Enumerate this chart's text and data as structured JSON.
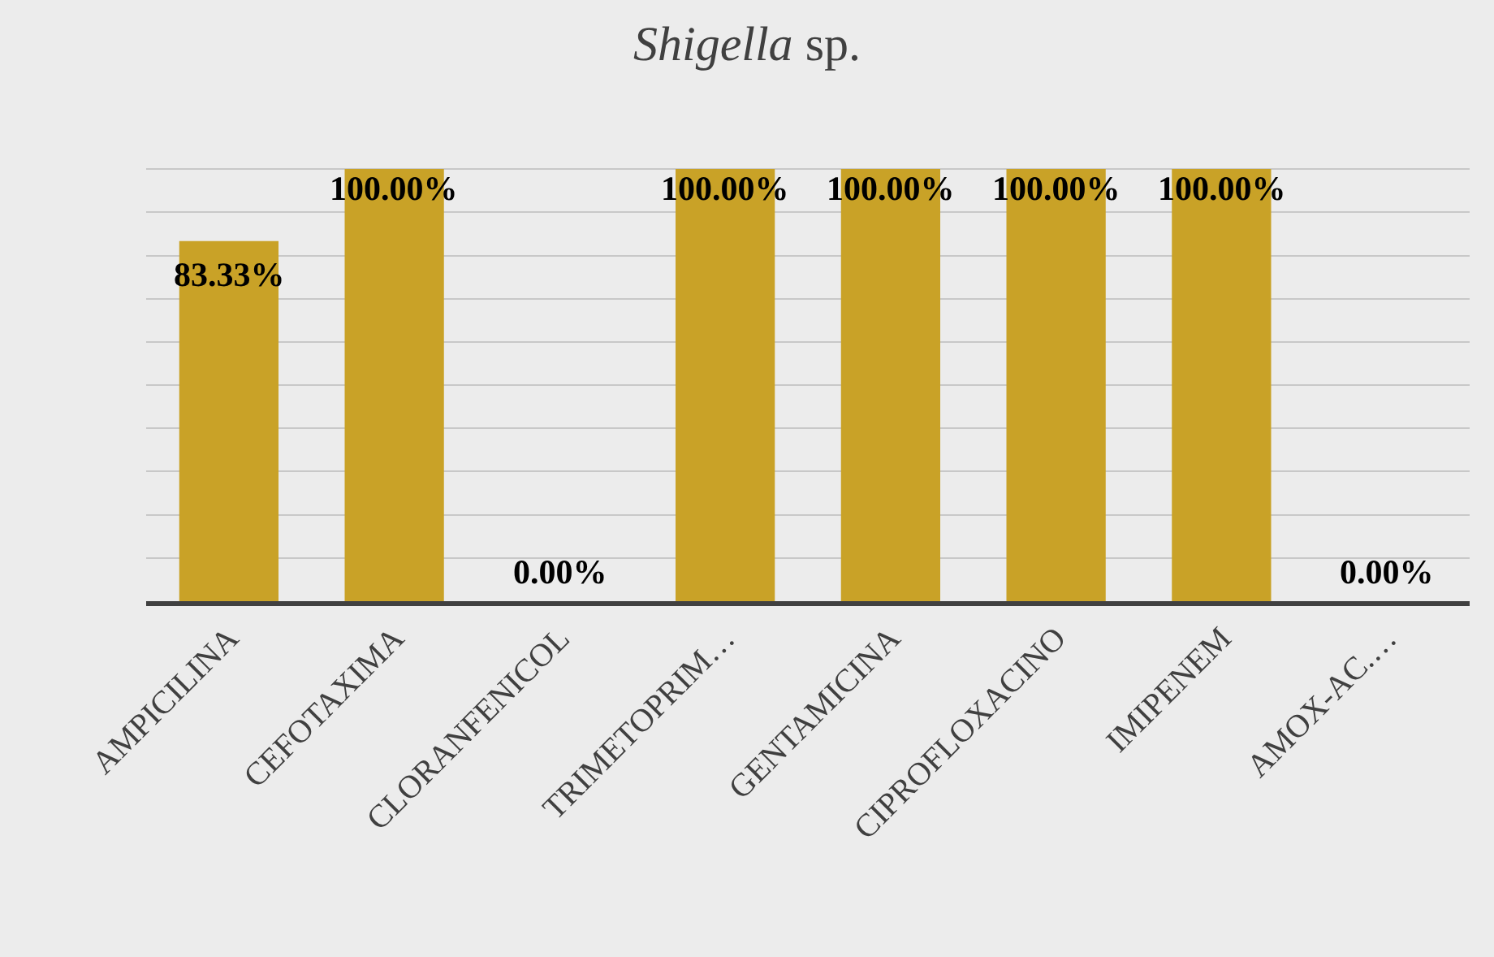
{
  "chart_data": {
    "type": "bar",
    "title": "Shigella sp.",
    "categories": [
      "AMPICILINA",
      "CEFOTAXIMA",
      "CLORANFENICOL",
      "TRIMETOPRIM…",
      "GENTAMICINA",
      "CIPROFLOXACINO",
      "IMIPENEM",
      "AMOX-AC.…"
    ],
    "values": [
      83.33,
      100,
      0,
      100,
      100,
      100,
      100,
      0
    ],
    "value_labels": [
      "83.33%",
      "100.00%",
      "0.00%",
      "100.00%",
      "100.00%",
      "100.00%",
      "100.00%",
      "0.00%"
    ],
    "color": "#c9a227",
    "ylim": [
      0,
      100
    ],
    "yticks": [
      {
        "value": 0,
        "label": null
      },
      {
        "value": 10,
        "label": null
      },
      {
        "value": 20,
        "label": null
      },
      {
        "value": 30,
        "label": null
      },
      {
        "value": 40,
        "label": null
      },
      {
        "value": 50,
        "label": null
      },
      {
        "value": 60,
        "label": null
      },
      {
        "value": 70,
        "label": null
      },
      {
        "value": 80,
        "label": null
      },
      {
        "value": 90,
        "label": null
      },
      {
        "value": 100,
        "label": null
      }
    ],
    "tick_labels": "x",
    "grid": "y",
    "legend": false
  }
}
